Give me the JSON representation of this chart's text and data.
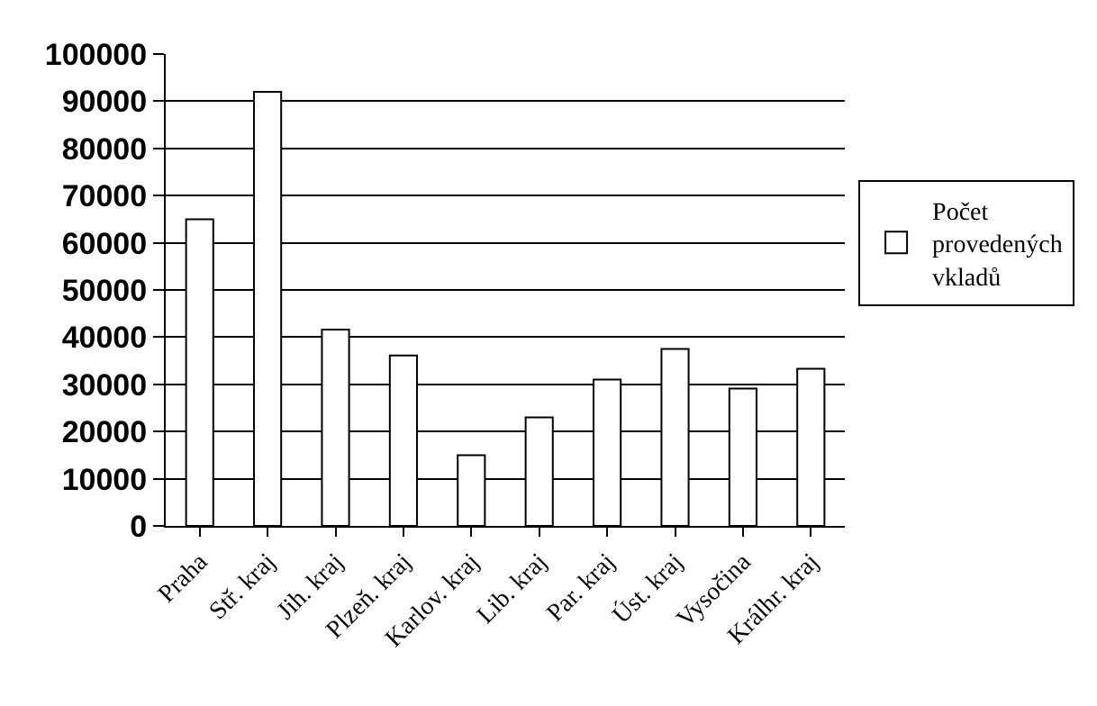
{
  "chart_data": {
    "type": "bar",
    "categories": [
      "Praha",
      "Stř. kraj",
      "Jih. kraj",
      "Plzeň. kraj",
      "Karlov. kraj",
      "Lib. kraj",
      "Par. kraj",
      "Úst. kraj",
      "Vysočina",
      "Králhr. kraj"
    ],
    "series": [
      {
        "name": "Počet provedených vkladů",
        "color": "#ffffff",
        "values": [
          65000,
          92000,
          41600,
          36100,
          15000,
          23000,
          31000,
          37500,
          29100,
          33300
        ]
      }
    ],
    "ylim": [
      0,
      100000
    ],
    "yticks": [
      0,
      10000,
      20000,
      30000,
      40000,
      50000,
      60000,
      70000,
      80000,
      90000,
      100000
    ],
    "grid": "y",
    "legend": "right"
  }
}
